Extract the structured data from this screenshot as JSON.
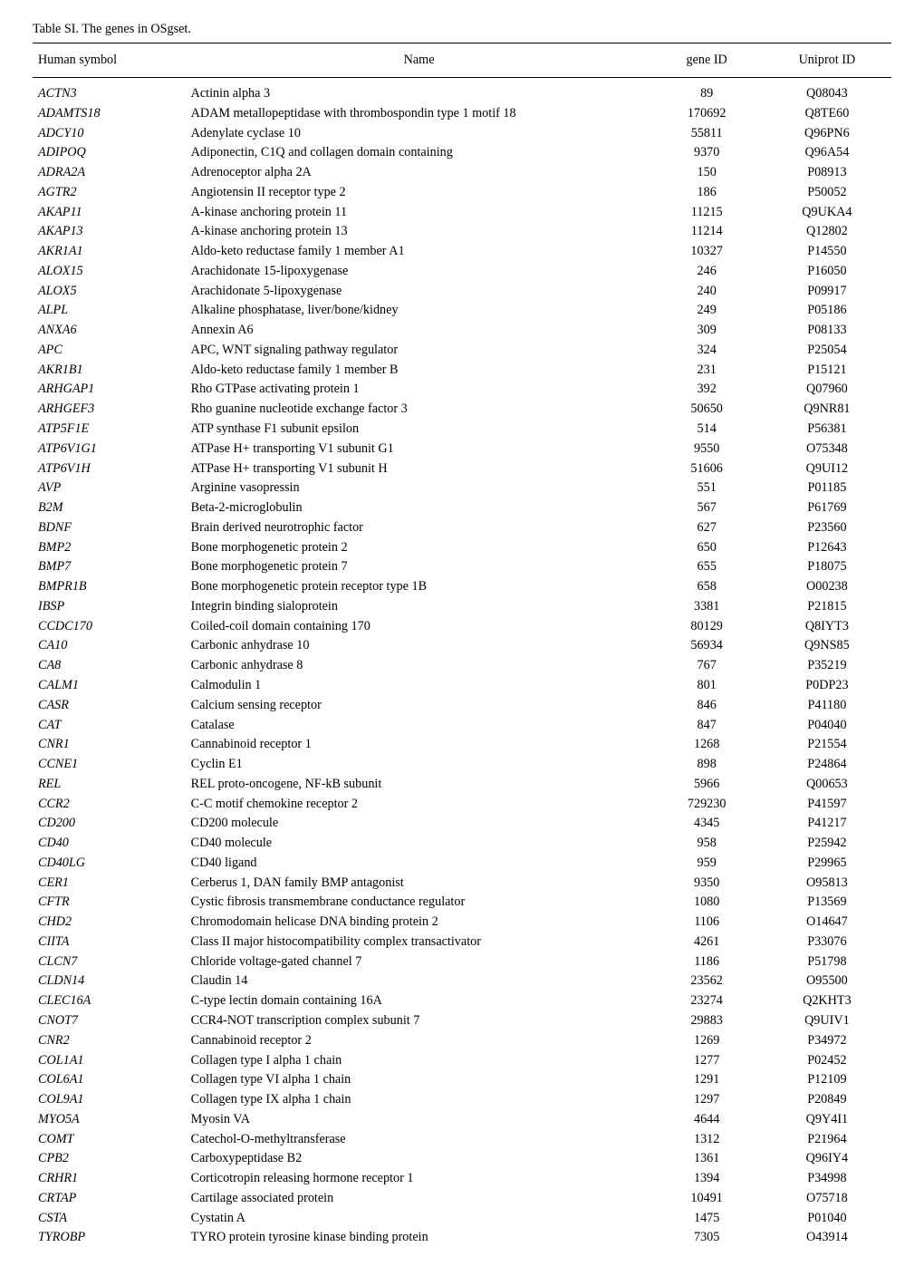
{
  "caption": "Table SI. The genes in OSgset.",
  "headers": {
    "symbol": "Human symbol",
    "name": "Name",
    "gene": "gene ID",
    "uni": "Uniprot ID"
  },
  "rows": [
    {
      "symbol": "ACTN3",
      "name": "Actinin alpha 3",
      "gene": "89",
      "uni": "Q08043"
    },
    {
      "symbol": "ADAMTS18",
      "name": "ADAM metallopeptidase with thrombospondin type 1 motif 18",
      "gene": "170692",
      "uni": "Q8TE60"
    },
    {
      "symbol": "ADCY10",
      "name": "Adenylate cyclase 10",
      "gene": "55811",
      "uni": "Q96PN6"
    },
    {
      "symbol": "ADIPOQ",
      "name": "Adiponectin, C1Q and collagen domain containing",
      "gene": "9370",
      "uni": "Q96A54"
    },
    {
      "symbol": "ADRA2A",
      "name": "Adrenoceptor alpha 2A",
      "gene": "150",
      "uni": "P08913"
    },
    {
      "symbol": "AGTR2",
      "name": "Angiotensin II receptor type 2",
      "gene": "186",
      "uni": "P50052"
    },
    {
      "symbol": "AKAP11",
      "name": "A-kinase anchoring protein 11",
      "gene": "11215",
      "uni": "Q9UKA4"
    },
    {
      "symbol": "AKAP13",
      "name": "A-kinase anchoring protein 13",
      "gene": "11214",
      "uni": "Q12802"
    },
    {
      "symbol": "AKR1A1",
      "name": "Aldo-keto reductase family 1 member A1",
      "gene": "10327",
      "uni": "P14550"
    },
    {
      "symbol": "ALOX15",
      "name": "Arachidonate 15-lipoxygenase",
      "gene": "246",
      "uni": "P16050"
    },
    {
      "symbol": "ALOX5",
      "name": "Arachidonate 5-lipoxygenase",
      "gene": "240",
      "uni": "P09917"
    },
    {
      "symbol": "ALPL",
      "name": "Alkaline phosphatase, liver/bone/kidney",
      "gene": "249",
      "uni": "P05186"
    },
    {
      "symbol": "ANXA6",
      "name": "Annexin A6",
      "gene": "309",
      "uni": "P08133"
    },
    {
      "symbol": "APC",
      "name": "APC, WNT signaling pathway regulator",
      "gene": "324",
      "uni": "P25054"
    },
    {
      "symbol": "AKR1B1",
      "name": "Aldo-keto reductase family 1 member B",
      "gene": "231",
      "uni": "P15121"
    },
    {
      "symbol": "ARHGAP1",
      "name": "Rho GTPase activating protein 1",
      "gene": "392",
      "uni": "Q07960"
    },
    {
      "symbol": "ARHGEF3",
      "name": "Rho guanine nucleotide exchange factor 3",
      "gene": "50650",
      "uni": "Q9NR81"
    },
    {
      "symbol": "ATP5F1E",
      "name": "ATP synthase F1 subunit epsilon",
      "gene": "514",
      "uni": "P56381"
    },
    {
      "symbol": "ATP6V1G1",
      "name": "ATPase H+ transporting V1 subunit G1",
      "gene": "9550",
      "uni": "O75348"
    },
    {
      "symbol": "ATP6V1H",
      "name": "ATPase H+ transporting V1 subunit H",
      "gene": "51606",
      "uni": "Q9UI12"
    },
    {
      "symbol": "AVP",
      "name": "Arginine vasopressin",
      "gene": "551",
      "uni": "P01185"
    },
    {
      "symbol": "B2M",
      "name": "Beta-2-microglobulin",
      "gene": "567",
      "uni": "P61769"
    },
    {
      "symbol": "BDNF",
      "name": "Brain derived neurotrophic factor",
      "gene": "627",
      "uni": "P23560"
    },
    {
      "symbol": "BMP2",
      "name": "Bone morphogenetic protein 2",
      "gene": "650",
      "uni": "P12643"
    },
    {
      "symbol": "BMP7",
      "name": "Bone morphogenetic protein 7",
      "gene": "655",
      "uni": "P18075"
    },
    {
      "symbol": "BMPR1B",
      "name": "Bone morphogenetic protein receptor type 1B",
      "gene": "658",
      "uni": "O00238"
    },
    {
      "symbol": "IBSP",
      "name": "Integrin binding sialoprotein",
      "gene": "3381",
      "uni": "P21815"
    },
    {
      "symbol": "CCDC170",
      "name": "Coiled-coil domain containing 170",
      "gene": "80129",
      "uni": "Q8IYT3"
    },
    {
      "symbol": "CA10",
      "name": "Carbonic anhydrase 10",
      "gene": "56934",
      "uni": "Q9NS85"
    },
    {
      "symbol": "CA8",
      "name": "Carbonic anhydrase 8",
      "gene": "767",
      "uni": "P35219"
    },
    {
      "symbol": "CALM1",
      "name": "Calmodulin 1",
      "gene": "801",
      "uni": "P0DP23"
    },
    {
      "symbol": "CASR",
      "name": "Calcium sensing receptor",
      "gene": "846",
      "uni": "P41180"
    },
    {
      "symbol": "CAT",
      "name": "Catalase",
      "gene": "847",
      "uni": "P04040"
    },
    {
      "symbol": "CNR1",
      "name": "Cannabinoid receptor 1",
      "gene": "1268",
      "uni": "P21554"
    },
    {
      "symbol": "CCNE1",
      "name": "Cyclin E1",
      "gene": "898",
      "uni": "P24864"
    },
    {
      "symbol": "REL",
      "name": "REL proto-oncogene, NF-kB subunit",
      "gene": "5966",
      "uni": "Q00653"
    },
    {
      "symbol": "CCR2",
      "name": "C-C motif chemokine receptor 2",
      "gene": "729230",
      "uni": "P41597"
    },
    {
      "symbol": "CD200",
      "name": "CD200 molecule",
      "gene": "4345",
      "uni": "P41217"
    },
    {
      "symbol": "CD40",
      "name": "CD40 molecule",
      "gene": "958",
      "uni": "P25942"
    },
    {
      "symbol": "CD40LG",
      "name": "CD40 ligand",
      "gene": "959",
      "uni": "P29965"
    },
    {
      "symbol": "CER1",
      "name": "Cerberus 1, DAN family BMP antagonist",
      "gene": "9350",
      "uni": "O95813"
    },
    {
      "symbol": "CFTR",
      "name": "Cystic fibrosis transmembrane conductance regulator",
      "gene": "1080",
      "uni": "P13569"
    },
    {
      "symbol": "CHD2",
      "name": "Chromodomain helicase DNA binding protein 2",
      "gene": "1106",
      "uni": "O14647"
    },
    {
      "symbol": "CIITA",
      "name": "Class II major histocompatibility complex transactivator",
      "gene": "4261",
      "uni": "P33076"
    },
    {
      "symbol": "CLCN7",
      "name": "Chloride voltage-gated channel 7",
      "gene": "1186",
      "uni": "P51798"
    },
    {
      "symbol": "CLDN14",
      "name": "Claudin 14",
      "gene": "23562",
      "uni": "O95500"
    },
    {
      "symbol": "CLEC16A",
      "name": "C-type lectin domain containing 16A",
      "gene": "23274",
      "uni": "Q2KHT3"
    },
    {
      "symbol": "CNOT7",
      "name": "CCR4-NOT transcription complex subunit 7",
      "gene": "29883",
      "uni": "Q9UIV1"
    },
    {
      "symbol": "CNR2",
      "name": "Cannabinoid receptor 2",
      "gene": "1269",
      "uni": "P34972"
    },
    {
      "symbol": "COL1A1",
      "name": "Collagen type I alpha 1 chain",
      "gene": "1277",
      "uni": "P02452"
    },
    {
      "symbol": "COL6A1",
      "name": "Collagen type VI alpha 1 chain",
      "gene": "1291",
      "uni": "P12109"
    },
    {
      "symbol": "COL9A1",
      "name": "Collagen type IX alpha 1 chain",
      "gene": "1297",
      "uni": "P20849"
    },
    {
      "symbol": "MYO5A",
      "name": "Myosin VA",
      "gene": "4644",
      "uni": "Q9Y4I1"
    },
    {
      "symbol": "COMT",
      "name": "Catechol-O-methyltransferase",
      "gene": "1312",
      "uni": "P21964"
    },
    {
      "symbol": "CPB2",
      "name": "Carboxypeptidase B2",
      "gene": "1361",
      "uni": "Q96IY4"
    },
    {
      "symbol": "CRHR1",
      "name": "Corticotropin releasing hormone receptor 1",
      "gene": "1394",
      "uni": "P34998"
    },
    {
      "symbol": "CRTAP",
      "name": "Cartilage associated protein",
      "gene": "10491",
      "uni": "O75718"
    },
    {
      "symbol": "CSTA",
      "name": "Cystatin A",
      "gene": "1475",
      "uni": "P01040"
    },
    {
      "symbol": "TYROBP",
      "name": "TYRO protein tyrosine kinase binding protein",
      "gene": "7305",
      "uni": "O43914"
    }
  ]
}
